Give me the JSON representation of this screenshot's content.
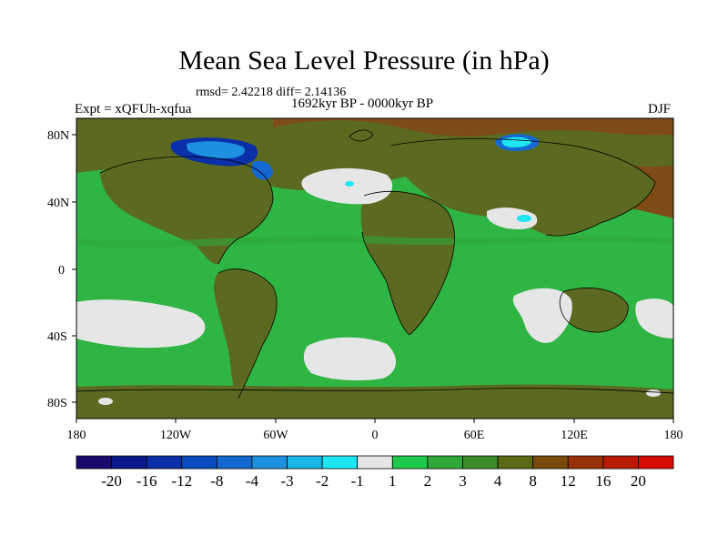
{
  "title": "Mean Sea Level Pressure (in hPa)",
  "stats": "rmsd= 2.42218 diff= 2.14136",
  "period": "1692kyr BP - 0000kyr BP",
  "experiment": "Expt = xQFUh-xqfua",
  "season": "DJF",
  "map": {
    "lon_ticks": [
      "180",
      "120W",
      "60W",
      "0",
      "60E",
      "120E",
      "180"
    ],
    "lat_ticks": [
      "80N",
      "40N",
      "0",
      "40S",
      "80S"
    ]
  },
  "colorbar": {
    "labels": [
      "-20",
      "-16",
      "-12",
      "-8",
      "-4",
      "-3",
      "-2",
      "-1",
      "1",
      "2",
      "3",
      "4",
      "8",
      "12",
      "16",
      "20"
    ],
    "colors": [
      "#1a0a6e",
      "#0a1a8c",
      "#0a2fa8",
      "#0a4bc0",
      "#1468d0",
      "#1e90e0",
      "#19b7e6",
      "#1ee6f0",
      "#e6e6e6",
      "#1ec84a",
      "#2ea838",
      "#3a8c28",
      "#5a6a14",
      "#7a4a0a",
      "#9a3008",
      "#b81a06",
      "#d80a04"
    ]
  },
  "colors": {
    "ocean_green": "#2fb544",
    "land_olive": "#5b6a20",
    "brown": "#7e4c16",
    "near_zero": "#e6e6e6"
  }
}
